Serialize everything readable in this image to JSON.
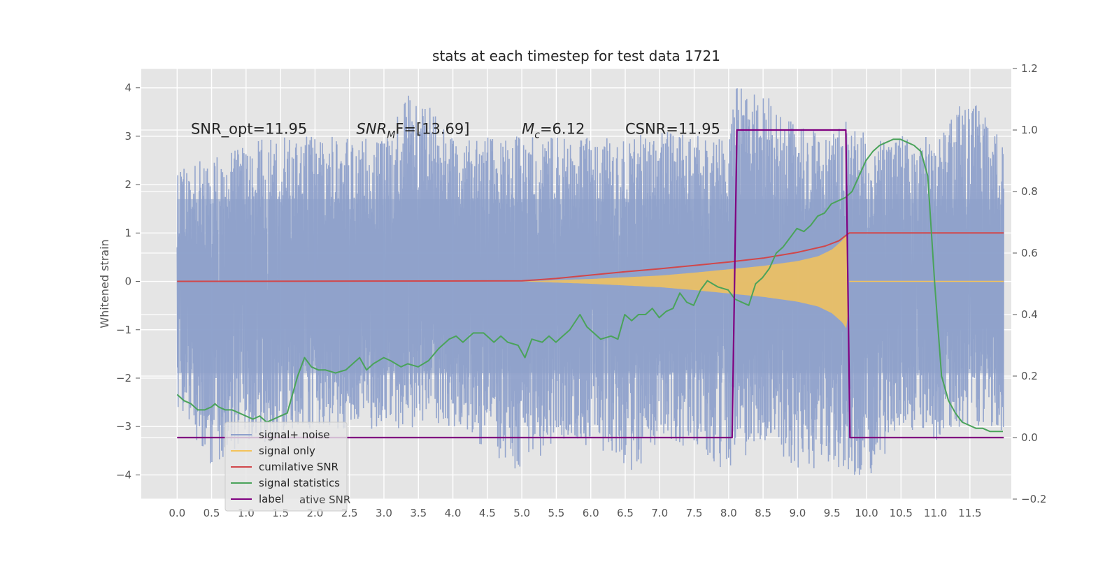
{
  "chart_data": {
    "type": "line",
    "title": "stats at each timestep for test data 1721",
    "ylabel": "Whitened strain",
    "xlabel": "",
    "xlim": [
      -0.52,
      12.1
    ],
    "ylim": [
      -4.5,
      4.4
    ],
    "y2lim": [
      -0.2,
      1.2
    ],
    "grid": true,
    "x_ticks": [
      "0.0",
      "0.5",
      "1.0",
      "1.5",
      "2.0",
      "2.5",
      "3.0",
      "3.5",
      "4.0",
      "4.5",
      "5.0",
      "5.5",
      "6.0",
      "6.5",
      "7.0",
      "7.5",
      "8.0",
      "8.5",
      "9.0",
      "9.5",
      "10.0",
      "10.5",
      "11.0",
      "11.5"
    ],
    "y_ticks": [
      "4",
      "3",
      "2",
      "1",
      "0",
      "−1",
      "−2",
      "−3",
      "−4"
    ],
    "y2_ticks": [
      "1.2",
      "1.0",
      "0.8",
      "0.6",
      "0.4",
      "0.2",
      "0.0",
      "−0.2"
    ],
    "annotations": [
      {
        "text": "SNR_opt=11.95",
        "x": 0.2,
        "y": 3.05
      },
      {
        "main": "SNR",
        "sub": "M",
        "tail": "F=[13.69]",
        "x": 2.6,
        "y": 3.05
      },
      {
        "main": "M",
        "sub": "c",
        "tail": "=6.12",
        "x": 5.0,
        "y": 3.05
      },
      {
        "text": "CSNR=11.95",
        "x": 6.5,
        "y": 3.05
      }
    ],
    "legend": {
      "position": "lower-left",
      "entries": [
        {
          "label": "signal+ noise",
          "color": "#8da0cb"
        },
        {
          "label": "signal only",
          "color": "#f4c35a"
        },
        {
          "label": "cumilative SNR",
          "color": "#d1474a"
        },
        {
          "label": "signal statistics",
          "color": "#4aa35a"
        },
        {
          "label": "label",
          "color": "#800080"
        }
      ],
      "overlap_text": "ative SNR"
    },
    "series": [
      {
        "name": "signal+ noise",
        "axis": "left",
        "color": "#8da0cb",
        "x_range": [
          0.0,
          11.99
        ],
        "upper_envelope": [
          [
            0,
            2.3
          ],
          [
            0.5,
            2.6
          ],
          [
            1,
            2.9
          ],
          [
            1.5,
            3.0
          ],
          [
            2,
            3.0
          ],
          [
            2.5,
            3.0
          ],
          [
            3,
            2.9
          ],
          [
            3.4,
            4.0
          ],
          [
            4,
            3.1
          ],
          [
            4.5,
            3.0
          ],
          [
            5,
            3.0
          ],
          [
            5.5,
            3.0
          ],
          [
            6,
            3.0
          ],
          [
            6.5,
            3.0
          ],
          [
            7,
            3.1
          ],
          [
            7.5,
            3.1
          ],
          [
            8,
            3.0
          ],
          [
            8.1,
            4.0
          ],
          [
            8.5,
            4.0
          ],
          [
            9,
            3.2
          ],
          [
            9.5,
            3.1
          ],
          [
            9.7,
            3.9
          ],
          [
            10,
            3.0
          ],
          [
            10.5,
            3.0
          ],
          [
            11,
            3.1
          ],
          [
            11.5,
            3.9
          ],
          [
            11.99,
            2.9
          ]
        ],
        "lower_envelope": [
          [
            0,
            -2.6
          ],
          [
            0.5,
            -3.9
          ],
          [
            1,
            -3.4
          ],
          [
            1.5,
            -3.3
          ],
          [
            2,
            -3.0
          ],
          [
            2.5,
            -3.1
          ],
          [
            3,
            -3.1
          ],
          [
            3.5,
            -3.0
          ],
          [
            4,
            -3.0
          ],
          [
            4.5,
            -3.5
          ],
          [
            5,
            -4.0
          ],
          [
            5.5,
            -3.3
          ],
          [
            6,
            -3.4
          ],
          [
            6.5,
            -4.0
          ],
          [
            7,
            -3.5
          ],
          [
            7.5,
            -3.4
          ],
          [
            8,
            -4.0
          ],
          [
            8.5,
            -3.3
          ],
          [
            9,
            -3.9
          ],
          [
            9.5,
            -3.9
          ],
          [
            10,
            -4.1
          ],
          [
            10.5,
            -3.1
          ],
          [
            11,
            -3.3
          ],
          [
            11.5,
            -3.0
          ],
          [
            11.99,
            -3.1
          ]
        ]
      },
      {
        "name": "signal only",
        "axis": "left",
        "color": "#f4c35a",
        "start": 5.0,
        "end": 9.75,
        "amplitude": [
          [
            5.0,
            0.0
          ],
          [
            6.0,
            0.05
          ],
          [
            7.0,
            0.12
          ],
          [
            7.5,
            0.18
          ],
          [
            8.0,
            0.25
          ],
          [
            8.5,
            0.32
          ],
          [
            9.0,
            0.42
          ],
          [
            9.3,
            0.52
          ],
          [
            9.5,
            0.66
          ],
          [
            9.65,
            0.85
          ],
          [
            9.72,
            1.0
          ],
          [
            9.75,
            0.0
          ]
        ]
      },
      {
        "name": "cumilative SNR",
        "axis": "left",
        "color": "#d1474a",
        "points": [
          [
            0,
            0.0
          ],
          [
            5.0,
            0.01
          ],
          [
            5.5,
            0.06
          ],
          [
            6,
            0.13
          ],
          [
            6.5,
            0.2
          ],
          [
            7,
            0.26
          ],
          [
            7.5,
            0.33
          ],
          [
            8,
            0.4
          ],
          [
            8.5,
            0.48
          ],
          [
            9,
            0.6
          ],
          [
            9.4,
            0.73
          ],
          [
            9.6,
            0.84
          ],
          [
            9.72,
            0.97
          ],
          [
            9.75,
            1.0
          ],
          [
            11.99,
            1.0
          ]
        ]
      },
      {
        "name": "signal statistics",
        "axis": "right",
        "color": "#4aa35a",
        "points": [
          [
            0,
            0.14
          ],
          [
            0.1,
            0.12
          ],
          [
            0.2,
            0.11
          ],
          [
            0.3,
            0.09
          ],
          [
            0.4,
            0.09
          ],
          [
            0.5,
            0.1
          ],
          [
            0.55,
            0.11
          ],
          [
            0.6,
            0.1
          ],
          [
            0.7,
            0.09
          ],
          [
            0.8,
            0.09
          ],
          [
            0.9,
            0.08
          ],
          [
            1.0,
            0.07
          ],
          [
            1.1,
            0.06
          ],
          [
            1.2,
            0.07
          ],
          [
            1.3,
            0.05
          ],
          [
            1.4,
            0.06
          ],
          [
            1.5,
            0.07
          ],
          [
            1.6,
            0.08
          ],
          [
            1.65,
            0.12
          ],
          [
            1.75,
            0.2
          ],
          [
            1.85,
            0.26
          ],
          [
            1.95,
            0.23
          ],
          [
            2.05,
            0.22
          ],
          [
            2.15,
            0.22
          ],
          [
            2.3,
            0.21
          ],
          [
            2.45,
            0.22
          ],
          [
            2.55,
            0.24
          ],
          [
            2.65,
            0.26
          ],
          [
            2.75,
            0.22
          ],
          [
            2.85,
            0.24
          ],
          [
            3.0,
            0.26
          ],
          [
            3.1,
            0.25
          ],
          [
            3.25,
            0.23
          ],
          [
            3.35,
            0.24
          ],
          [
            3.5,
            0.23
          ],
          [
            3.65,
            0.25
          ],
          [
            3.8,
            0.29
          ],
          [
            3.95,
            0.32
          ],
          [
            4.05,
            0.33
          ],
          [
            4.15,
            0.31
          ],
          [
            4.3,
            0.34
          ],
          [
            4.45,
            0.34
          ],
          [
            4.5,
            0.33
          ],
          [
            4.6,
            0.31
          ],
          [
            4.7,
            0.33
          ],
          [
            4.8,
            0.31
          ],
          [
            4.95,
            0.3
          ],
          [
            5.05,
            0.26
          ],
          [
            5.15,
            0.32
          ],
          [
            5.3,
            0.31
          ],
          [
            5.4,
            0.33
          ],
          [
            5.5,
            0.31
          ],
          [
            5.6,
            0.33
          ],
          [
            5.7,
            0.35
          ],
          [
            5.85,
            0.4
          ],
          [
            5.95,
            0.36
          ],
          [
            6.05,
            0.34
          ],
          [
            6.15,
            0.32
          ],
          [
            6.3,
            0.33
          ],
          [
            6.4,
            0.32
          ],
          [
            6.5,
            0.4
          ],
          [
            6.6,
            0.38
          ],
          [
            6.7,
            0.4
          ],
          [
            6.8,
            0.4
          ],
          [
            6.9,
            0.42
          ],
          [
            7.0,
            0.39
          ],
          [
            7.1,
            0.41
          ],
          [
            7.2,
            0.42
          ],
          [
            7.3,
            0.47
          ],
          [
            7.4,
            0.44
          ],
          [
            7.5,
            0.43
          ],
          [
            7.6,
            0.48
          ],
          [
            7.7,
            0.51
          ],
          [
            7.85,
            0.49
          ],
          [
            8.0,
            0.48
          ],
          [
            8.1,
            0.45
          ],
          [
            8.2,
            0.44
          ],
          [
            8.3,
            0.43
          ],
          [
            8.4,
            0.5
          ],
          [
            8.5,
            0.52
          ],
          [
            8.6,
            0.55
          ],
          [
            8.7,
            0.6
          ],
          [
            8.8,
            0.62
          ],
          [
            8.9,
            0.65
          ],
          [
            9.0,
            0.68
          ],
          [
            9.1,
            0.67
          ],
          [
            9.2,
            0.69
          ],
          [
            9.3,
            0.72
          ],
          [
            9.4,
            0.73
          ],
          [
            9.5,
            0.76
          ],
          [
            9.6,
            0.77
          ],
          [
            9.7,
            0.78
          ],
          [
            9.8,
            0.8
          ],
          [
            9.9,
            0.85
          ],
          [
            10.0,
            0.9
          ],
          [
            10.1,
            0.93
          ],
          [
            10.2,
            0.95
          ],
          [
            10.3,
            0.96
          ],
          [
            10.4,
            0.97
          ],
          [
            10.5,
            0.97
          ],
          [
            10.6,
            0.96
          ],
          [
            10.7,
            0.95
          ],
          [
            10.8,
            0.93
          ],
          [
            10.9,
            0.85
          ],
          [
            11.0,
            0.5
          ],
          [
            11.1,
            0.2
          ],
          [
            11.2,
            0.12
          ],
          [
            11.3,
            0.08
          ],
          [
            11.4,
            0.05
          ],
          [
            11.5,
            0.04
          ],
          [
            11.6,
            0.03
          ],
          [
            11.7,
            0.03
          ],
          [
            11.8,
            0.02
          ],
          [
            11.9,
            0.02
          ],
          [
            11.99,
            0.02
          ]
        ]
      },
      {
        "name": "label",
        "axis": "right",
        "color": "#800080",
        "points": [
          [
            0,
            0.0
          ],
          [
            8.05,
            0.0
          ],
          [
            8.12,
            1.0
          ],
          [
            9.7,
            1.0
          ],
          [
            9.76,
            0.0
          ],
          [
            11.99,
            0.0
          ]
        ]
      }
    ]
  }
}
